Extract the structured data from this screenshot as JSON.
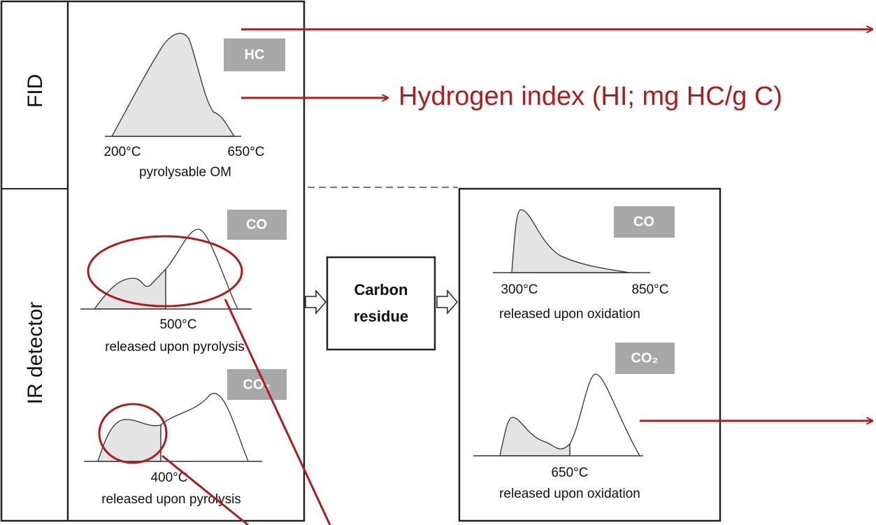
{
  "detectors": {
    "fid": "FID",
    "ir": "IR detector"
  },
  "pyrolysis": {
    "hc": {
      "tag": "HC",
      "start": "200°C",
      "end": "650°C",
      "caption": "pyrolysable OM"
    },
    "co": {
      "tag": "CO",
      "split": "500°C",
      "caption": "released upon pyrolysis"
    },
    "co2": {
      "tag": "CO₂",
      "split": "400°C",
      "caption": "released upon pyrolysis"
    }
  },
  "residue": {
    "line1": "Carbon",
    "line2": "residue"
  },
  "oxidation": {
    "co": {
      "tag": "CO",
      "start": "300°C",
      "end": "850°C",
      "caption": "released upon oxidation"
    },
    "co2": {
      "tag": "CO₂",
      "split": "650°C",
      "caption": "released upon oxidation"
    }
  },
  "annotation": "Hydrogen index (HI; mg HC/g C)"
}
